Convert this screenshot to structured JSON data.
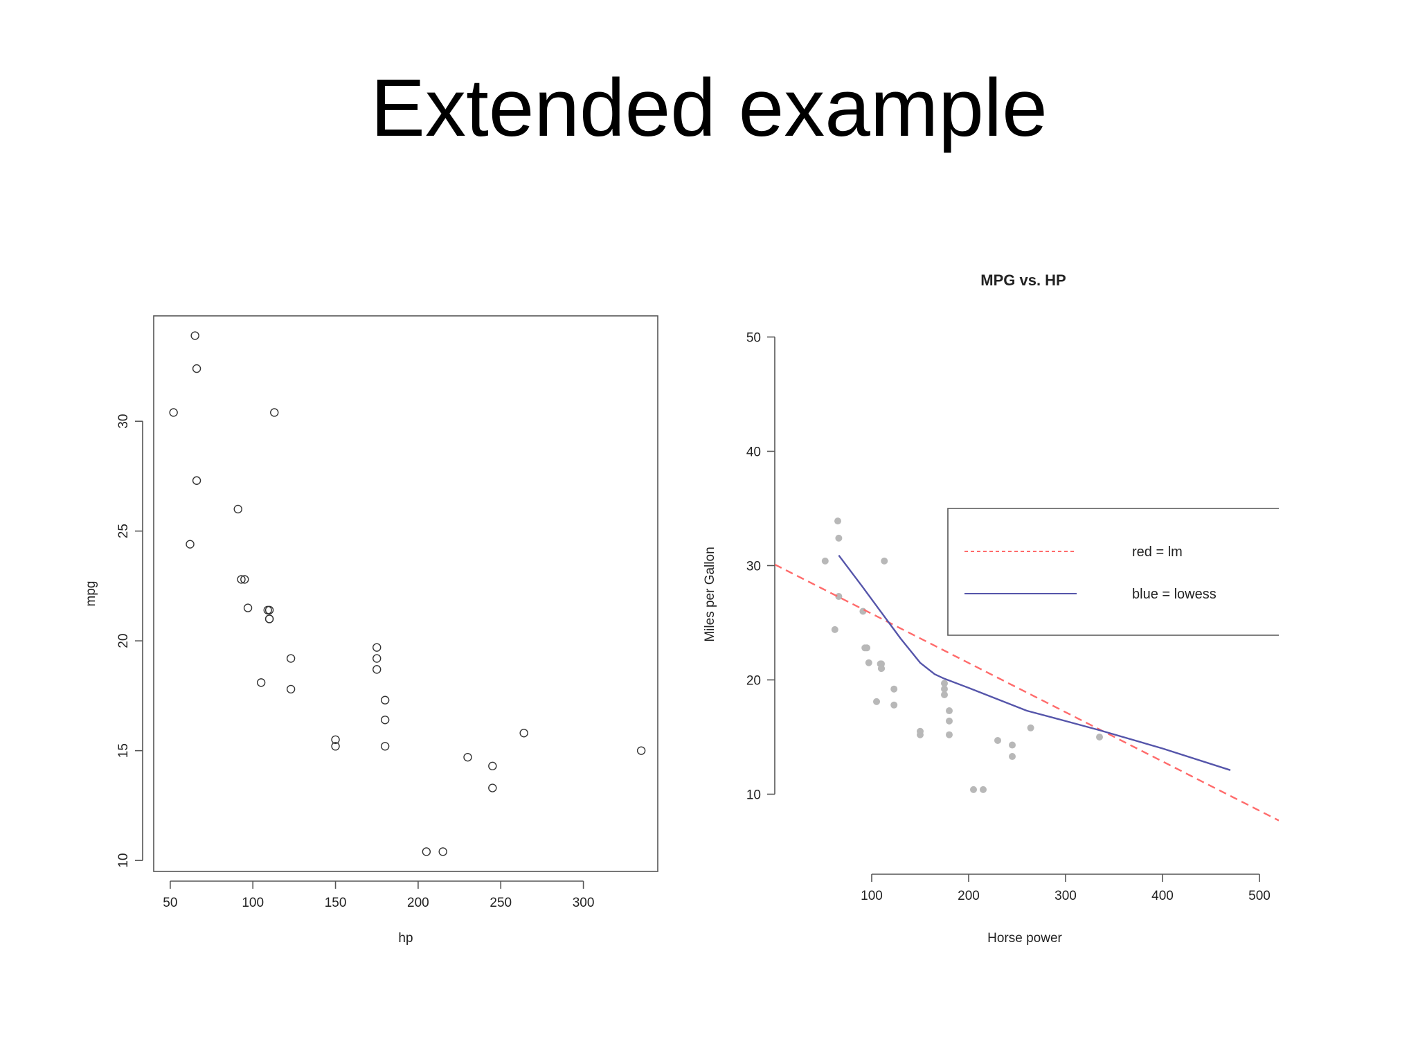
{
  "slide": {
    "title": "Extended example"
  },
  "chart_data": [
    {
      "type": "scatter",
      "title": "",
      "xlabel": "hp",
      "ylabel": "mpg",
      "xlim": [
        40,
        345
      ],
      "ylim": [
        9.5,
        34.8
      ],
      "xticks": [
        50,
        100,
        150,
        200,
        250,
        300
      ],
      "yticks": [
        10,
        15,
        20,
        25,
        30
      ],
      "grid": false,
      "marker": "open-circle",
      "x": [
        110,
        110,
        93,
        110,
        175,
        105,
        245,
        62,
        95,
        123,
        123,
        180,
        180,
        180,
        205,
        215,
        230,
        66,
        52,
        65,
        97,
        150,
        150,
        245,
        175,
        66,
        91,
        113,
        264,
        175,
        335,
        109
      ],
      "y": [
        21.0,
        21.0,
        22.8,
        21.4,
        18.7,
        18.1,
        14.3,
        24.4,
        22.8,
        19.2,
        17.8,
        16.4,
        17.3,
        15.2,
        10.4,
        10.4,
        14.7,
        32.4,
        30.4,
        33.9,
        21.5,
        15.5,
        15.2,
        13.3,
        19.2,
        27.3,
        26.0,
        30.4,
        15.8,
        19.7,
        15.0,
        21.4
      ]
    },
    {
      "type": "scatter",
      "title": "MPG vs. HP",
      "xlabel": "Horse power",
      "ylabel": "Miles per Gallon",
      "xlim": [
        0,
        520
      ],
      "ylim": [
        3,
        51
      ],
      "xticks": [
        100,
        200,
        300,
        400,
        500
      ],
      "yticks": [
        10,
        20,
        30,
        40,
        50
      ],
      "grid": false,
      "legend": {
        "placement": "top-right",
        "entries": [
          {
            "label": "red = lm",
            "color": "#ff6b6b",
            "style": "dashed"
          },
          {
            "label": "blue = lowess",
            "color": "#5555aa",
            "style": "solid"
          }
        ]
      },
      "point_color": "#b8b8b8",
      "x": [
        110,
        110,
        93,
        110,
        175,
        105,
        245,
        62,
        95,
        123,
        123,
        180,
        180,
        180,
        205,
        215,
        230,
        66,
        52,
        65,
        97,
        150,
        150,
        245,
        175,
        66,
        91,
        113,
        264,
        175,
        335,
        109
      ],
      "y": [
        21.0,
        21.0,
        22.8,
        21.4,
        18.7,
        18.1,
        14.3,
        24.4,
        22.8,
        19.2,
        17.8,
        16.4,
        17.3,
        15.2,
        10.4,
        10.4,
        14.7,
        32.4,
        30.4,
        33.9,
        21.5,
        15.5,
        15.2,
        13.3,
        19.2,
        27.3,
        26.0,
        30.4,
        15.8,
        19.7,
        15.0,
        21.4
      ],
      "series": [
        {
          "type": "line",
          "style": "dashed",
          "color": "#ff6b6b",
          "x": [
            0,
            520
          ],
          "y": [
            30.1,
            7.7
          ]
        },
        {
          "type": "line",
          "style": "solid",
          "color": "#5555aa",
          "x": [
            66,
            90,
            110,
            130,
            150,
            165,
            175,
            200,
            230,
            260,
            300,
            335,
            400,
            470
          ],
          "y": [
            30.9,
            28.2,
            25.9,
            23.6,
            21.5,
            20.5,
            20.1,
            19.3,
            18.3,
            17.3,
            16.4,
            15.6,
            14.0,
            12.1
          ]
        }
      ]
    }
  ]
}
